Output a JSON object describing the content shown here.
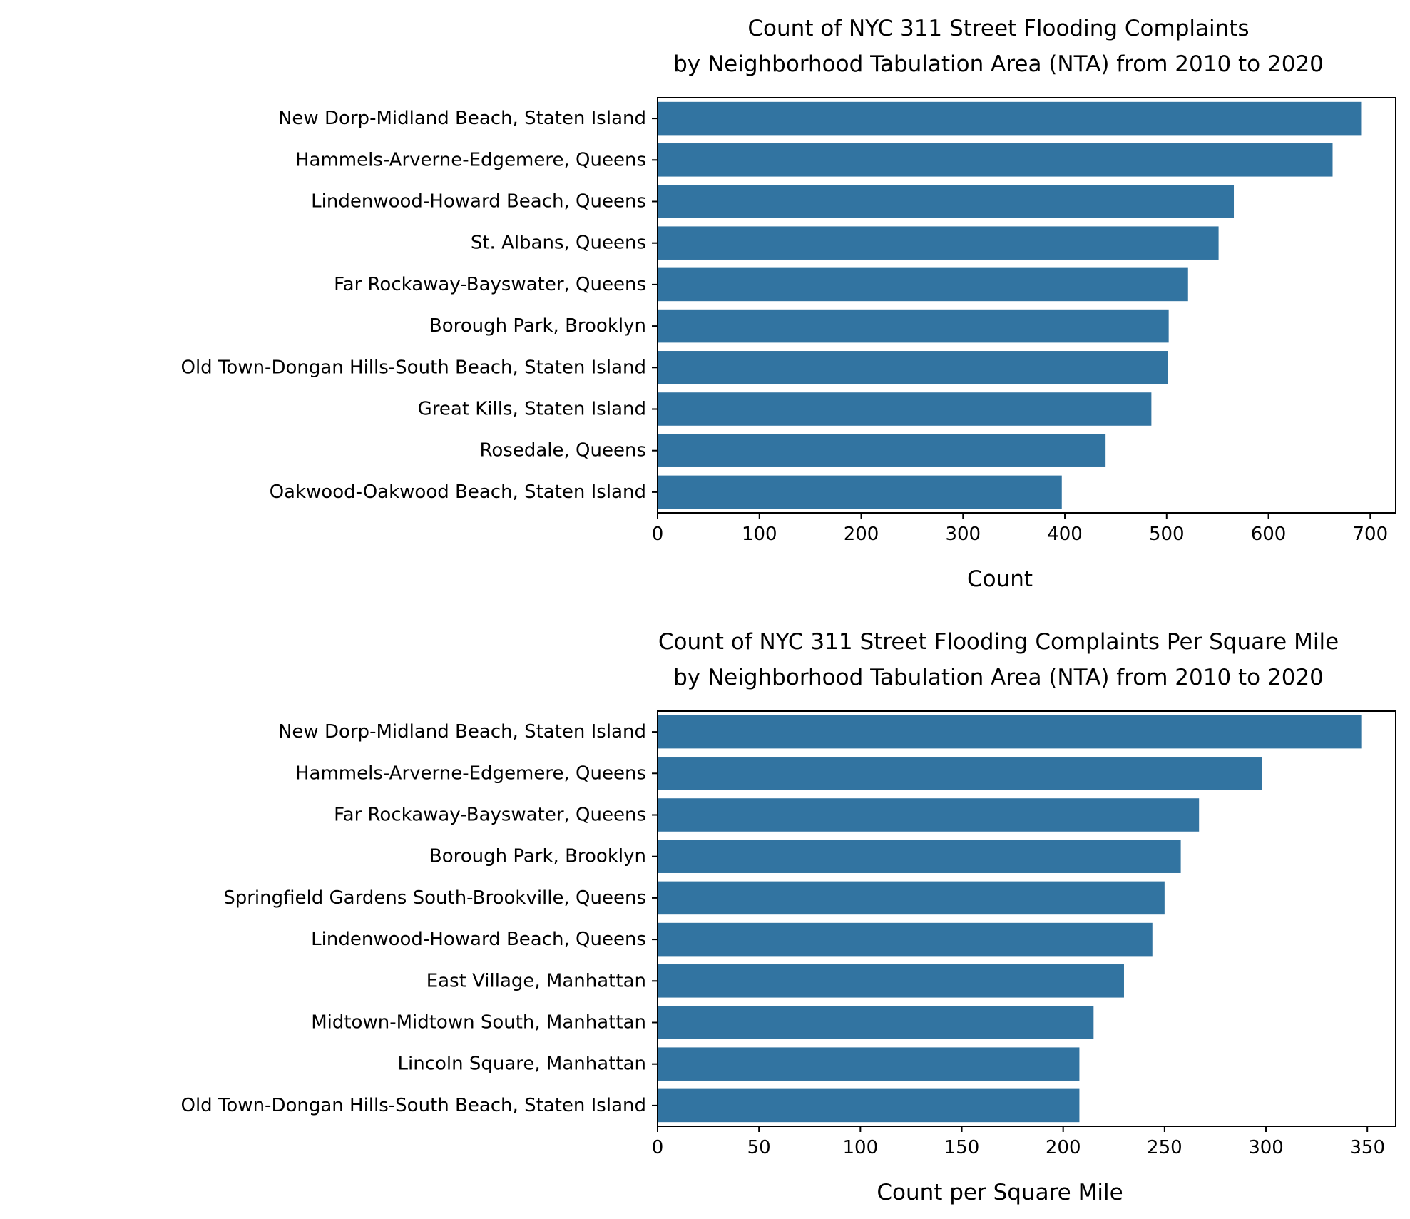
{
  "chart_data": [
    {
      "type": "bar",
      "orientation": "horizontal",
      "title_line1": "Count of NYC 311 Street Flooding Complaints",
      "title_line2": "by Neighborhood Tabulation Area (NTA) from 2010 to 2020",
      "xlabel": "Count",
      "ylabel": "",
      "xlim": [
        0,
        725
      ],
      "xticks": [
        0,
        100,
        200,
        300,
        400,
        500,
        600,
        700
      ],
      "bar_color": "#3274a1",
      "categories": [
        "New Dorp-Midland Beach, Staten Island",
        "Hammels-Arverne-Edgemere, Queens",
        "Lindenwood-Howard Beach, Queens",
        "St. Albans, Queens",
        "Far Rockaway-Bayswater, Queens",
        "Borough Park, Brooklyn",
        "Old Town-Dongan Hills-South Beach, Staten Island",
        "Great Kills, Staten Island",
        "Rosedale, Queens",
        "Oakwood-Oakwood Beach, Staten Island"
      ],
      "values": [
        691,
        663,
        566,
        551,
        521,
        502,
        501,
        485,
        440,
        397
      ]
    },
    {
      "type": "bar",
      "orientation": "horizontal",
      "title_line1": "Count of NYC 311 Street Flooding Complaints Per Square Mile",
      "title_line2": "by Neighborhood Tabulation Area (NTA) from 2010 to 2020",
      "xlabel": "Count per Square Mile",
      "ylabel": "",
      "xlim": [
        0,
        364
      ],
      "xticks": [
        0,
        50,
        100,
        150,
        200,
        250,
        300,
        350
      ],
      "bar_color": "#3274a1",
      "categories": [
        "New Dorp-Midland Beach, Staten Island",
        "Hammels-Arverne-Edgemere, Queens",
        "Far Rockaway-Bayswater, Queens",
        "Borough Park, Brooklyn",
        "Springfield Gardens South-Brookville, Queens",
        "Lindenwood-Howard Beach, Queens",
        "East Village, Manhattan",
        "Midtown-Midtown South, Manhattan",
        "Lincoln Square, Manhattan",
        "Old Town-Dongan Hills-South Beach, Staten Island"
      ],
      "values": [
        347,
        298,
        267,
        258,
        250,
        244,
        230,
        215,
        208,
        208
      ]
    }
  ]
}
